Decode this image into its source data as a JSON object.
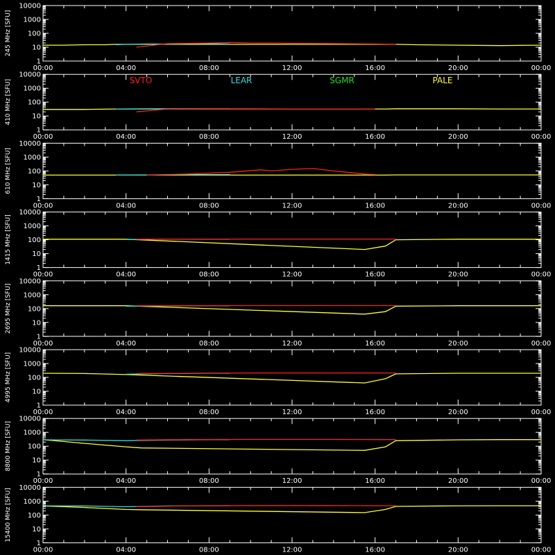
{
  "colors": {
    "background": "#000000",
    "axes": "#ffffff",
    "SVTO": "#ff2020",
    "LEAR": "#33dddd",
    "SGMR": "#22dd22",
    "PALE": "#ffff33"
  },
  "legend": {
    "placement": "top, inside second panel",
    "entries": [
      {
        "label": "SVTO",
        "color": "#ff2020"
      },
      {
        "label": "LEAR",
        "color": "#33dddd"
      },
      {
        "label": "SGMR",
        "color": "#22dd22"
      },
      {
        "label": "PALE",
        "color": "#ffff33"
      }
    ]
  },
  "chart_data": [
    {
      "type": "line",
      "ylabel": "245 MHz  [SFU]",
      "yscale": "log",
      "ylim": [
        1,
        10000
      ],
      "yticks": [
        "1",
        "10",
        "100",
        "1000",
        "10000"
      ],
      "xlim": [
        "00:00",
        "24:00"
      ],
      "xticks": [
        "00:00",
        "04:00",
        "08:00",
        "12:00",
        "16:00",
        "20:00",
        "00:00"
      ],
      "series": [
        {
          "name": "PALE",
          "x": [
            "00:00",
            "01:00",
            "02:00",
            "03:00",
            "03:30",
            "17:00",
            "18:00",
            "20:00",
            "22:00",
            "24:00"
          ],
          "values": [
            14,
            14,
            15,
            15,
            16,
            16,
            15,
            14,
            13,
            14
          ]
        },
        {
          "name": "LEAR",
          "x": [
            "03:30",
            "04:00",
            "05:00",
            "06:00",
            "07:00",
            "08:00",
            "09:00"
          ],
          "values": [
            15,
            16,
            17,
            17,
            18,
            18,
            17
          ]
        },
        {
          "name": "SVTO",
          "x": [
            "04:30",
            "06:00",
            "08:00",
            "09:00",
            "10:00",
            "11:00",
            "12:00",
            "14:00",
            "16:00",
            "17:00"
          ],
          "values": [
            10,
            18,
            20,
            22,
            20,
            20,
            19,
            18,
            17,
            16
          ]
        }
      ]
    },
    {
      "type": "line",
      "ylabel": "410 MHz  [SFU]",
      "yscale": "log",
      "ylim": [
        1,
        10000
      ],
      "yticks": [
        "1",
        "10",
        "100",
        "1000",
        "10000"
      ],
      "xlim": [
        "00:00",
        "24:00"
      ],
      "xticks": [
        "00:00",
        "04:00",
        "08:00",
        "12:00",
        "16:00",
        "20:00",
        "00:00"
      ],
      "series": [
        {
          "name": "PALE",
          "x": [
            "00:00",
            "02:00",
            "03:30",
            "16:30",
            "17:00",
            "20:00",
            "22:00",
            "24:00"
          ],
          "values": [
            30,
            30,
            32,
            32,
            33,
            33,
            32,
            32
          ]
        },
        {
          "name": "LEAR",
          "x": [
            "03:30",
            "05:00",
            "07:00",
            "09:00"
          ],
          "values": [
            32,
            33,
            34,
            34
          ]
        },
        {
          "name": "SVTO",
          "x": [
            "04:30",
            "06:00",
            "08:00",
            "10:00",
            "12:00",
            "14:00",
            "16:00"
          ],
          "values": [
            20,
            32,
            33,
            33,
            32,
            32,
            32
          ]
        }
      ]
    },
    {
      "type": "line",
      "ylabel": "610 MHz  [SFU]",
      "yscale": "log",
      "ylim": [
        1,
        10000
      ],
      "yticks": [
        "1",
        "10",
        "100",
        "1000",
        "10000"
      ],
      "xlim": [
        "00:00",
        "24:00"
      ],
      "xticks": [
        "00:00",
        "04:00",
        "08:00",
        "12:00",
        "16:00",
        "20:00",
        "00:00"
      ],
      "series": [
        {
          "name": "PALE",
          "x": [
            "00:00",
            "02:00",
            "03:30",
            "16:30",
            "17:00",
            "20:00",
            "24:00"
          ],
          "values": [
            50,
            50,
            50,
            50,
            52,
            52,
            52
          ]
        },
        {
          "name": "LEAR",
          "x": [
            "03:30",
            "05:00",
            "07:00",
            "09:00"
          ],
          "values": [
            50,
            52,
            55,
            55
          ]
        },
        {
          "name": "SVTO",
          "x": [
            "05:00",
            "07:00",
            "09:00",
            "10:30",
            "11:00",
            "12:00",
            "13:00",
            "14:00",
            "15:30",
            "16:00"
          ],
          "values": [
            50,
            60,
            80,
            120,
            100,
            130,
            150,
            100,
            60,
            55
          ]
        }
      ]
    },
    {
      "type": "line",
      "ylabel": "1415 MHz  [SFU]",
      "yscale": "log",
      "ylim": [
        1,
        10000
      ],
      "yticks": [
        "1",
        "10",
        "100",
        "1000",
        "10000"
      ],
      "xlim": [
        "00:00",
        "24:00"
      ],
      "xticks": [
        "00:00",
        "04:00",
        "08:00",
        "12:00",
        "16:00",
        "20:00",
        "00:00"
      ],
      "series": [
        {
          "name": "PALE",
          "x": [
            "00:00",
            "02:00",
            "04:00",
            "15:30",
            "16:30",
            "17:00",
            "20:00",
            "24:00"
          ],
          "values": [
            110,
            110,
            110,
            20,
            35,
            100,
            110,
            110
          ]
        },
        {
          "name": "LEAR",
          "x": [
            "04:00",
            "06:00",
            "08:00",
            "09:00"
          ],
          "values": [
            105,
            108,
            110,
            110
          ]
        },
        {
          "name": "SVTO",
          "x": [
            "04:30",
            "07:00",
            "10:00",
            "12:00",
            "14:00",
            "16:00",
            "17:00"
          ],
          "values": [
            110,
            110,
            112,
            112,
            112,
            112,
            112
          ]
        }
      ]
    },
    {
      "type": "line",
      "ylabel": "2695 MHz  [SFU]",
      "yscale": "log",
      "ylim": [
        1,
        10000
      ],
      "yticks": [
        "1",
        "10",
        "100",
        "1000",
        "10000"
      ],
      "xlim": [
        "00:00",
        "24:00"
      ],
      "xticks": [
        "00:00",
        "04:00",
        "08:00",
        "12:00",
        "16:00",
        "20:00",
        "00:00"
      ],
      "series": [
        {
          "name": "PALE",
          "x": [
            "00:00",
            "02:00",
            "04:00",
            "15:30",
            "16:30",
            "17:00",
            "20:00",
            "24:00"
          ],
          "values": [
            160,
            160,
            160,
            40,
            60,
            150,
            160,
            160
          ]
        },
        {
          "name": "LEAR",
          "x": [
            "04:00",
            "06:00",
            "08:00",
            "09:00"
          ],
          "values": [
            150,
            155,
            160,
            160
          ]
        },
        {
          "name": "SVTO",
          "x": [
            "04:30",
            "07:00",
            "10:00",
            "12:00",
            "14:00",
            "16:00",
            "17:00"
          ],
          "values": [
            160,
            160,
            165,
            165,
            165,
            165,
            165
          ]
        }
      ]
    },
    {
      "type": "line",
      "ylabel": "4995 MHz  [SFU]",
      "yscale": "log",
      "ylim": [
        1,
        10000
      ],
      "yticks": [
        "1",
        "10",
        "100",
        "1000",
        "10000"
      ],
      "xlim": [
        "00:00",
        "24:00"
      ],
      "xticks": [
        "00:00",
        "04:00",
        "08:00",
        "12:00",
        "16:00",
        "20:00",
        "00:00"
      ],
      "series": [
        {
          "name": "PALE",
          "x": [
            "00:00",
            "02:00",
            "04:00",
            "15:30",
            "16:30",
            "17:00",
            "20:00",
            "24:00"
          ],
          "values": [
            200,
            190,
            160,
            40,
            80,
            180,
            200,
            200
          ]
        },
        {
          "name": "LEAR",
          "x": [
            "04:00",
            "06:00",
            "08:00",
            "09:00"
          ],
          "values": [
            170,
            190,
            200,
            200
          ]
        },
        {
          "name": "SVTO",
          "x": [
            "04:30",
            "07:00",
            "10:00",
            "12:00",
            "14:00",
            "16:00",
            "17:00"
          ],
          "values": [
            190,
            200,
            210,
            210,
            210,
            210,
            210
          ]
        }
      ]
    },
    {
      "type": "line",
      "ylabel": "8800 MHz  [SFU]",
      "yscale": "log",
      "ylim": [
        1,
        10000
      ],
      "yticks": [
        "1",
        "10",
        "100",
        "1000",
        "10000"
      ],
      "xlim": [
        "00:00",
        "24:00"
      ],
      "xticks": [
        "00:00",
        "04:00",
        "08:00",
        "12:00",
        "16:00",
        "20:00",
        "00:00"
      ],
      "series": [
        {
          "name": "PALE",
          "x": [
            "00:00",
            "01:00",
            "02:00",
            "03:00",
            "04:00",
            "04:45",
            "15:30",
            "16:30",
            "17:00",
            "20:00",
            "22:00",
            "24:00"
          ],
          "values": [
            300,
            220,
            160,
            120,
            90,
            75,
            50,
            90,
            250,
            290,
            300,
            300
          ]
        },
        {
          "name": "LEAR",
          "x": [
            "00:00",
            "02:00",
            "04:00",
            "06:00",
            "08:00",
            "09:00"
          ],
          "values": [
            290,
            280,
            250,
            280,
            300,
            300
          ]
        },
        {
          "name": "SVTO",
          "x": [
            "04:30",
            "07:00",
            "10:00",
            "12:00",
            "14:00",
            "16:00",
            "17:00"
          ],
          "values": [
            280,
            300,
            310,
            310,
            310,
            300,
            300
          ]
        }
      ]
    },
    {
      "type": "line",
      "ylabel": "15400 MHz  [SFU]",
      "yscale": "log",
      "ylim": [
        1,
        10000
      ],
      "yticks": [
        "1",
        "10",
        "100",
        "1000",
        "10000"
      ],
      "xlim": [
        "00:00",
        "24:00"
      ],
      "xticks": [
        "00:00",
        "04:00",
        "08:00",
        "12:00",
        "16:00",
        "20:00",
        "00:00"
      ],
      "series": [
        {
          "name": "PALE",
          "x": [
            "00:00",
            "01:00",
            "02:00",
            "03:00",
            "04:00",
            "04:45",
            "15:30",
            "16:30",
            "17:00",
            "20:00",
            "22:00",
            "24:00"
          ],
          "values": [
            450,
            400,
            350,
            300,
            250,
            240,
            150,
            250,
            420,
            460,
            470,
            470
          ]
        },
        {
          "name": "LEAR",
          "x": [
            "00:00",
            "02:00",
            "04:00",
            "06:00",
            "08:00",
            "09:00"
          ],
          "values": [
            460,
            450,
            400,
            450,
            470,
            470
          ]
        },
        {
          "name": "SVTO",
          "x": [
            "04:30",
            "07:00",
            "10:00",
            "12:00",
            "14:00",
            "16:00",
            "17:00"
          ],
          "values": [
            400,
            460,
            480,
            480,
            480,
            470,
            470
          ]
        }
      ]
    }
  ]
}
